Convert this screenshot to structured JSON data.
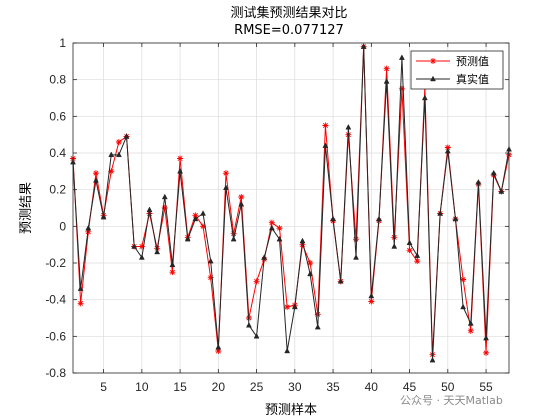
{
  "chart_data": {
    "type": "line",
    "title": "测试集预测结果对比",
    "subtitle": "RMSE=0.077127",
    "xlabel": "预测样本",
    "ylabel": "预测结果",
    "xlim": [
      1,
      58
    ],
    "ylim": [
      -0.8,
      1
    ],
    "xticks": [
      5,
      10,
      15,
      20,
      25,
      30,
      35,
      40,
      45,
      50,
      55
    ],
    "yticks": [
      -0.8,
      -0.6,
      -0.4,
      -0.2,
      0,
      0.2,
      0.4,
      0.6,
      0.8,
      1
    ],
    "ytick_labels": [
      "-0.8",
      "-0.6",
      "-0.4",
      "-0.2",
      "0",
      "0.2",
      "0.4",
      "0.6",
      "0.8",
      "1"
    ],
    "grid": true,
    "legend_position": "top-right",
    "x": [
      1,
      2,
      3,
      4,
      5,
      6,
      7,
      8,
      9,
      10,
      11,
      12,
      13,
      14,
      15,
      16,
      17,
      18,
      19,
      20,
      21,
      22,
      23,
      24,
      25,
      26,
      27,
      28,
      29,
      30,
      31,
      32,
      33,
      34,
      35,
      36,
      37,
      38,
      39,
      40,
      41,
      42,
      43,
      44,
      45,
      46,
      47,
      48,
      49,
      50,
      51,
      52,
      53,
      54,
      55,
      56,
      57,
      58
    ],
    "series": [
      {
        "name": "预测值",
        "color": "#ff0000",
        "marker": "star",
        "values": [
          0.37,
          -0.42,
          -0.03,
          0.29,
          0.06,
          0.3,
          0.46,
          0.49,
          -0.11,
          -0.11,
          0.07,
          -0.12,
          0.1,
          -0.25,
          0.37,
          -0.06,
          0.06,
          0.0,
          -0.28,
          -0.68,
          0.29,
          -0.04,
          0.16,
          -0.5,
          -0.3,
          -0.18,
          0.02,
          -0.01,
          -0.44,
          -0.43,
          -0.1,
          -0.2,
          -0.48,
          0.55,
          0.03,
          -0.3,
          0.5,
          -0.07,
          0.98,
          -0.41,
          0.03,
          0.86,
          -0.06,
          0.75,
          -0.13,
          -0.19,
          0.76,
          -0.7,
          0.07,
          0.43,
          0.04,
          -0.29,
          -0.57,
          0.23,
          -0.69,
          0.28,
          0.19,
          0.39
        ]
      },
      {
        "name": "真实值",
        "color": "#262626",
        "marker": "triangle",
        "values": [
          0.35,
          -0.34,
          -0.01,
          0.25,
          0.05,
          0.39,
          0.39,
          0.49,
          -0.11,
          -0.17,
          0.09,
          -0.14,
          0.16,
          -0.21,
          0.3,
          -0.07,
          0.04,
          0.07,
          -0.19,
          -0.66,
          0.21,
          -0.07,
          0.12,
          -0.54,
          -0.6,
          -0.17,
          -0.01,
          -0.07,
          -0.68,
          -0.44,
          -0.08,
          -0.26,
          -0.55,
          0.44,
          0.04,
          -0.3,
          0.54,
          -0.17,
          0.98,
          -0.38,
          0.04,
          0.79,
          -0.11,
          0.92,
          -0.09,
          -0.16,
          0.7,
          -0.73,
          0.07,
          0.41,
          0.04,
          -0.44,
          -0.53,
          0.24,
          -0.61,
          0.29,
          0.19,
          0.42
        ]
      }
    ]
  },
  "watermark": "公众号 · 天天Matlab"
}
